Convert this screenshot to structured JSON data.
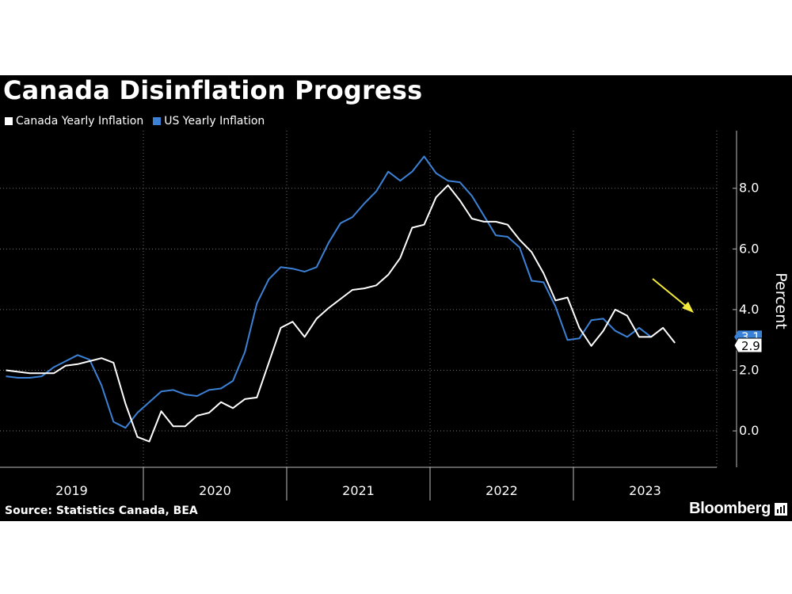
{
  "chart_data": {
    "type": "line",
    "title": "Canada Disinflation Progress",
    "ylabel": "Percent",
    "xlabel": "",
    "ylim": [
      -1.2,
      9.9
    ],
    "yticks": [
      0.0,
      2.0,
      4.0,
      6.0,
      8.0
    ],
    "ytick_labels": [
      "0.0",
      "2.0",
      "4.0",
      "6.0",
      "8.0"
    ],
    "x_tick_labels": [
      "2019",
      "2020",
      "2021",
      "2022",
      "2023"
    ],
    "x_start": "2019-01",
    "x_end": "2023-12",
    "grid": true,
    "legend_position": "top-left",
    "x": [
      "2019-01",
      "2019-02",
      "2019-03",
      "2019-04",
      "2019-05",
      "2019-06",
      "2019-07",
      "2019-08",
      "2019-09",
      "2019-10",
      "2019-11",
      "2019-12",
      "2020-01",
      "2020-02",
      "2020-03",
      "2020-04",
      "2020-05",
      "2020-06",
      "2020-07",
      "2020-08",
      "2020-09",
      "2020-10",
      "2020-11",
      "2020-12",
      "2021-01",
      "2021-02",
      "2021-03",
      "2021-04",
      "2021-05",
      "2021-06",
      "2021-07",
      "2021-08",
      "2021-09",
      "2021-10",
      "2021-11",
      "2021-12",
      "2022-01",
      "2022-02",
      "2022-03",
      "2022-04",
      "2022-05",
      "2022-06",
      "2022-07",
      "2022-08",
      "2022-09",
      "2022-10",
      "2022-11",
      "2022-12",
      "2023-01",
      "2023-02",
      "2023-03",
      "2023-04",
      "2023-05",
      "2023-06",
      "2023-07",
      "2023-08",
      "2023-09",
      "2023-10",
      "2023-11",
      "2023-12"
    ],
    "series": [
      {
        "name": "Canada Yearly Inflation",
        "color": "#ffffff",
        "values": [
          2.0,
          1.95,
          1.9,
          1.9,
          1.9,
          2.15,
          2.2,
          2.3,
          2.4,
          2.25,
          0.9,
          -0.2,
          -0.35,
          0.65,
          0.15,
          0.15,
          0.5,
          0.6,
          0.95,
          0.75,
          1.05,
          1.1,
          2.25,
          3.4,
          3.6,
          3.1,
          3.7,
          4.05,
          4.35,
          4.65,
          4.7,
          4.8,
          5.15,
          5.7,
          6.7,
          6.8,
          7.7,
          8.1,
          7.6,
          7.0,
          6.9,
          6.9,
          6.8,
          6.3,
          5.9,
          5.2,
          4.3,
          4.4,
          3.4,
          2.8,
          3.3,
          4.0,
          3.8,
          3.1,
          3.1,
          3.4,
          2.9,
          null,
          null,
          null
        ],
        "last_label": "2.9"
      },
      {
        "name": "US Yearly Inflation",
        "color": "#3b82d6",
        "values": [
          1.8,
          1.75,
          1.75,
          1.8,
          2.1,
          2.3,
          2.5,
          2.35,
          1.5,
          0.3,
          0.1,
          0.6,
          0.95,
          1.3,
          1.35,
          1.2,
          1.15,
          1.35,
          1.4,
          1.65,
          2.6,
          4.2,
          5.0,
          5.4,
          5.35,
          5.25,
          5.4,
          6.2,
          6.85,
          7.05,
          7.5,
          7.9,
          8.55,
          8.25,
          8.55,
          9.05,
          8.5,
          8.25,
          8.2,
          7.75,
          7.1,
          6.45,
          6.4,
          6.05,
          4.95,
          4.9,
          4.1,
          3.0,
          3.05,
          3.65,
          3.7,
          3.3,
          3.1,
          3.4,
          3.1,
          null,
          null,
          null,
          null,
          null
        ],
        "last_label": "3.1"
      }
    ],
    "annotation": {
      "type": "arrow",
      "color": "#f2e93c"
    }
  },
  "source": "Source: Statistics Canada, BEA",
  "brand": "Bloomberg"
}
